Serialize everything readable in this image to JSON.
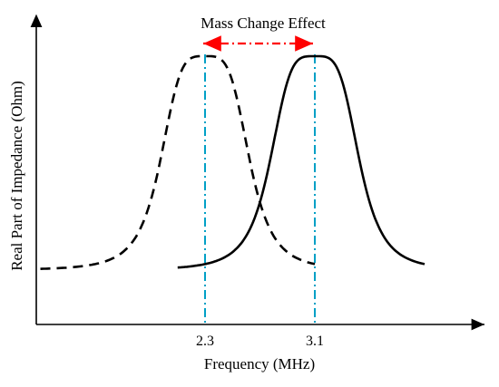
{
  "chart_data": {
    "type": "line",
    "title": "Mass Change Effect",
    "xlabel": "Frequency (MHz)",
    "ylabel": "Real Part of Impedance (Ohm)",
    "x_ticks": [
      "2.3",
      "3.1"
    ],
    "peaks_mhz": [
      2.3,
      3.1
    ],
    "series": [
      {
        "style": "dashed",
        "peak_x": 2.3,
        "x_range": [
          1.1,
          3.1
        ]
      },
      {
        "style": "solid",
        "peak_x": 3.1,
        "x_range": [
          2.1,
          3.9
        ]
      }
    ],
    "annotation": {
      "type": "double-arrow",
      "from_x": 2.3,
      "to_x": 3.1,
      "color": "#ff0000",
      "style": "dash-dot"
    },
    "guide_line_color": "#00a0c6",
    "curve_color": "#000000",
    "grid": false
  }
}
